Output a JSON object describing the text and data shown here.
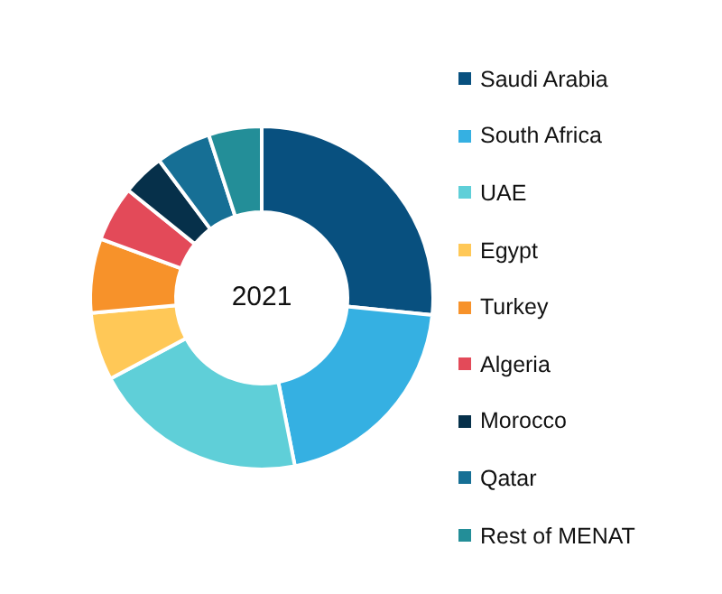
{
  "chart_data": {
    "type": "donut",
    "categories": [
      "Saudi Arabia",
      "South Africa",
      "UAE",
      "Egypt",
      "Turkey",
      "Algeria",
      "Morocco",
      "Qatar",
      "Rest of MENAT"
    ],
    "values": [
      26.6,
      20.3,
      20.3,
      6.4,
      7.0,
      5.2,
      4.0,
      5.2,
      5.0
    ],
    "colors": [
      "#08507f",
      "#35b0e2",
      "#5fcfd8",
      "#ffc857",
      "#f7922a",
      "#e34a59",
      "#06304a",
      "#166f95",
      "#238e98"
    ],
    "annotations": [
      "2021"
    ],
    "legend": "right"
  }
}
